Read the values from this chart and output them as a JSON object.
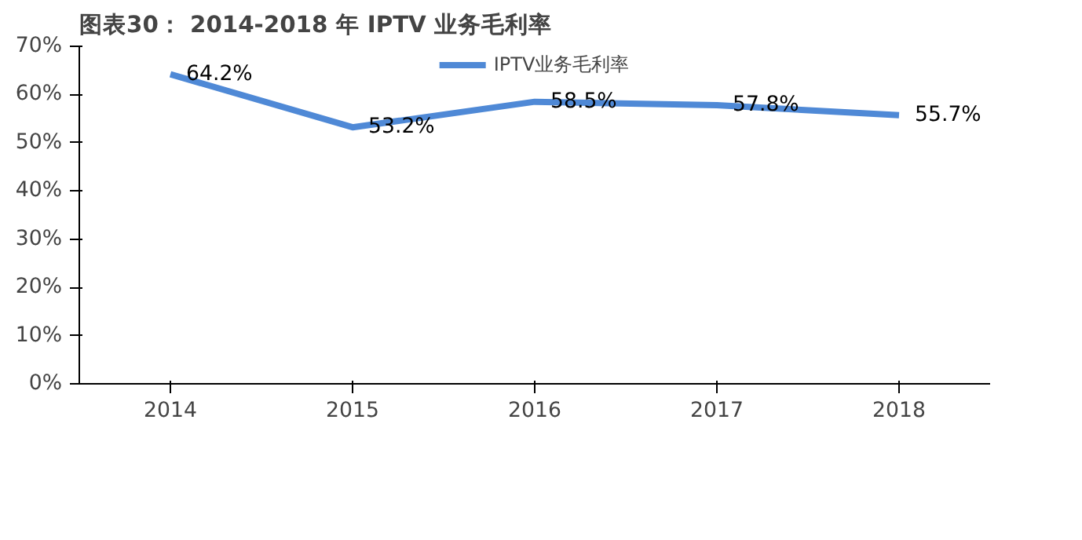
{
  "chart_data": {
    "type": "line",
    "title": "图表30： 2014-2018 年 IPTV 业务毛利率",
    "categories": [
      "2014",
      "2015",
      "2016",
      "2017",
      "2018"
    ],
    "series": [
      {
        "name": "IPTV业务毛利率",
        "color": "#4f89d6",
        "values": [
          64.2,
          53.2,
          58.5,
          57.8,
          55.7
        ],
        "value_labels": [
          "64.2%",
          "53.2%",
          "58.5%",
          "57.8%",
          "55.7%"
        ]
      }
    ],
    "ylim": [
      0,
      70
    ],
    "yticks": [
      {
        "value": 0,
        "label": "0%"
      },
      {
        "value": 10,
        "label": "10%"
      },
      {
        "value": 20,
        "label": "20%"
      },
      {
        "value": 30,
        "label": "30%"
      },
      {
        "value": 40,
        "label": "40%"
      },
      {
        "value": 50,
        "label": "50%"
      },
      {
        "value": 60,
        "label": "60%"
      },
      {
        "value": 70,
        "label": "70%"
      }
    ],
    "grid": false,
    "legend": "top",
    "marker": "none",
    "line_style": "solid"
  }
}
